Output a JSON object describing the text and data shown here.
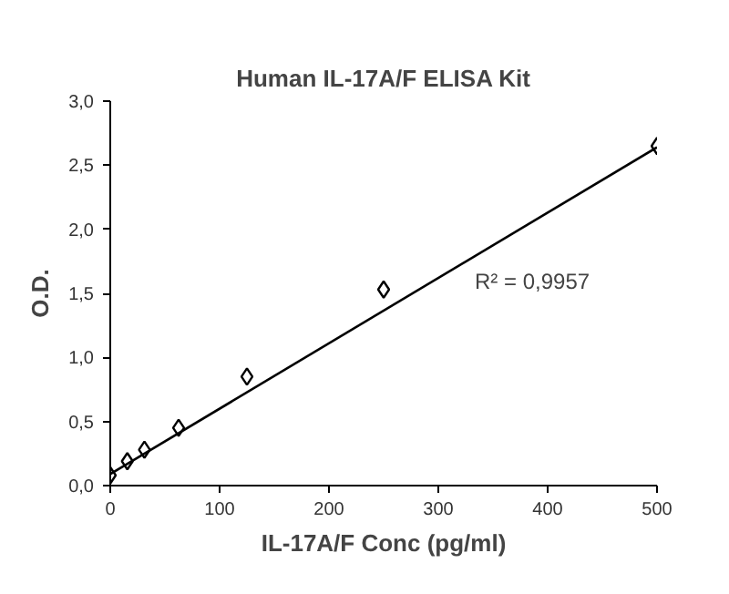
{
  "chart_data": {
    "type": "scatter",
    "title": "Human IL-17A/F ELISA Kit",
    "xlabel": "IL-17A/F Conc (pg/ml)",
    "ylabel": "O.D.",
    "series": [
      {
        "color": "#000000",
        "marker": "diamond",
        "x": [
          0,
          15.6,
          31.25,
          62.5,
          125,
          250,
          500
        ],
        "values": [
          0.08,
          0.19,
          0.28,
          0.45,
          0.85,
          1.53,
          2.65
        ]
      },
      {
        "type": "line",
        "color": "#000000",
        "x": [
          0,
          500
        ],
        "values": [
          0.09,
          2.64
        ]
      }
    ],
    "annotations": [
      "R² = 0,9957"
    ],
    "xlim": [
      0,
      500
    ],
    "ylim": [
      0,
      3
    ],
    "xticks": [
      0,
      100,
      200,
      300,
      400,
      500
    ],
    "yticks": [
      {
        "value": 0,
        "label": "0,0"
      },
      {
        "value": 0.5,
        "label": "0,5"
      },
      {
        "value": 1,
        "label": "1,0"
      },
      {
        "value": 1.5,
        "label": "1,5"
      },
      {
        "value": 2,
        "label": "2,0"
      },
      {
        "value": 2.5,
        "label": "2,5"
      },
      {
        "value": 3,
        "label": "3,0"
      }
    ],
    "grid": false
  }
}
